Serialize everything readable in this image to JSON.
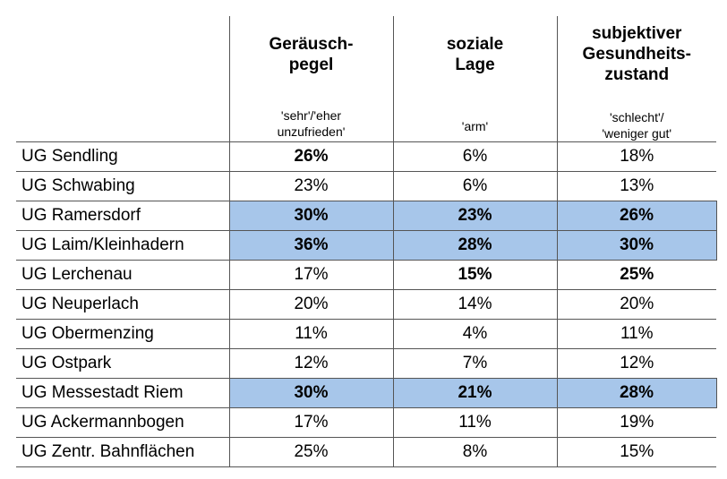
{
  "columns": [
    {
      "title_lines": [
        "Geräusch-",
        "pegel"
      ],
      "subtitle_lines": [
        "'sehr'/'eher",
        "unzufrieden'"
      ]
    },
    {
      "title_lines": [
        "soziale",
        "Lage"
      ],
      "subtitle_lines": [
        "'arm'"
      ]
    },
    {
      "title_lines": [
        "subjektiver",
        "Gesundheits-",
        "zustand"
      ],
      "subtitle_lines": [
        "'schlecht'/",
        "'weniger gut'"
      ]
    }
  ],
  "rows": [
    {
      "label": "UG Sendling",
      "values": [
        "26%",
        "6%",
        "18%"
      ],
      "bold": [
        true,
        false,
        false
      ],
      "highlight": false
    },
    {
      "label": "UG Schwabing",
      "values": [
        "23%",
        "6%",
        "13%"
      ],
      "bold": [
        false,
        false,
        false
      ],
      "highlight": false
    },
    {
      "label": "UG Ramersdorf",
      "values": [
        "30%",
        "23%",
        "26%"
      ],
      "bold": [
        true,
        true,
        true
      ],
      "highlight": true
    },
    {
      "label": "UG Laim/Kleinhadern",
      "values": [
        "36%",
        "28%",
        "30%"
      ],
      "bold": [
        true,
        true,
        true
      ],
      "highlight": true
    },
    {
      "label": "UG Lerchenau",
      "values": [
        "17%",
        "15%",
        "25%"
      ],
      "bold": [
        false,
        true,
        true
      ],
      "highlight": false
    },
    {
      "label": "UG Neuperlach",
      "values": [
        "20%",
        "14%",
        "20%"
      ],
      "bold": [
        false,
        false,
        false
      ],
      "highlight": false
    },
    {
      "label": "UG Obermenzing",
      "values": [
        "11%",
        "4%",
        "11%"
      ],
      "bold": [
        false,
        false,
        false
      ],
      "highlight": false
    },
    {
      "label": "UG Ostpark",
      "values": [
        "12%",
        "7%",
        "12%"
      ],
      "bold": [
        false,
        false,
        false
      ],
      "highlight": false
    },
    {
      "label": "UG Messestadt Riem",
      "values": [
        "30%",
        "21%",
        "28%"
      ],
      "bold": [
        true,
        true,
        true
      ],
      "highlight": true
    },
    {
      "label": "UG Ackermannbogen",
      "values": [
        "17%",
        "11%",
        "19%"
      ],
      "bold": [
        false,
        false,
        false
      ],
      "highlight": false
    },
    {
      "label": "UG Zentr. Bahnflächen",
      "values": [
        "25%",
        "8%",
        "15%"
      ],
      "bold": [
        false,
        false,
        false
      ],
      "highlight": false
    }
  ],
  "colors": {
    "highlight": "#a7c6ea",
    "border": "#555555"
  }
}
